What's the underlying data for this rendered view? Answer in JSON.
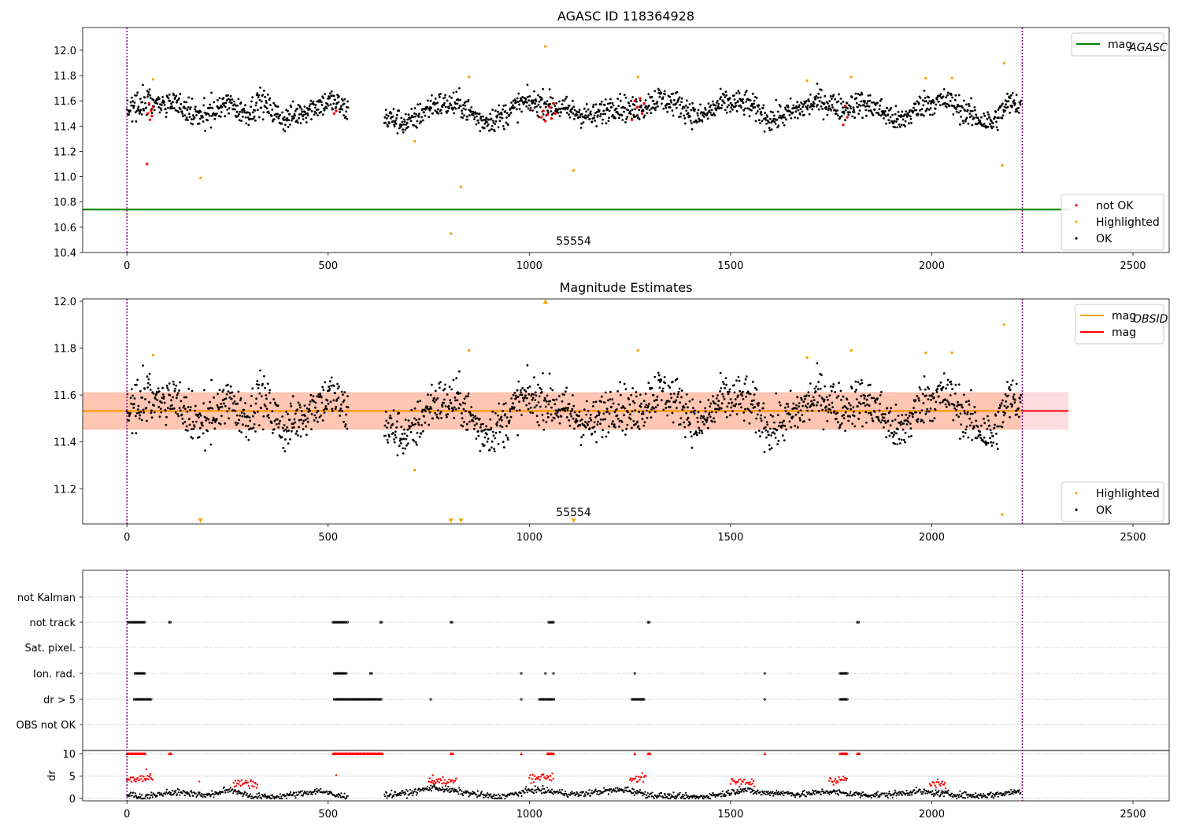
{
  "chart_data": [
    {
      "type": "scatter",
      "title": "AGASC ID 118364928",
      "xlim": [
        -110,
        2590
      ],
      "ylim": [
        10.4,
        12.18
      ],
      "xticks": [
        0,
        500,
        1000,
        1500,
        2000,
        2500
      ],
      "yticks": [
        10.4,
        10.6,
        10.8,
        11.0,
        11.2,
        11.4,
        11.6,
        11.8,
        12.0
      ],
      "ytick_labels": [
        "10.4",
        "10.6",
        "10.8",
        "11.0",
        "11.2",
        "11.4",
        "11.6",
        "11.8",
        "12.0"
      ],
      "annotation": "55554",
      "annotation_x": 1110,
      "vlines": [
        0,
        2225
      ],
      "legend_upper": [
        {
          "label": "mag",
          "sub": "AGASC",
          "color": "#008000",
          "kind": "line"
        }
      ],
      "legend_lower": [
        {
          "label": "not OK",
          "color": "#ff0000",
          "kind": "dot"
        },
        {
          "label": "Highlighted",
          "color": "#ffa500",
          "kind": "dot"
        },
        {
          "label": "OK",
          "color": "#000000",
          "kind": "dot"
        }
      ],
      "series": [
        {
          "name": "mag AGASC",
          "kind": "hline",
          "y": 10.74,
          "x": [
            -110,
            2340
          ],
          "color": "#008000"
        },
        {
          "name": "OK",
          "kind": "scatter",
          "color": "#000000",
          "segments": [
            [
              0,
              550
            ],
            [
              640,
              2222
            ]
          ],
          "y_knots": [
            [
              0,
              11.55
            ],
            [
              60,
              11.6
            ],
            [
              120,
              11.58
            ],
            [
              180,
              11.46
            ],
            [
              250,
              11.58
            ],
            [
              300,
              11.5
            ],
            [
              330,
              11.6
            ],
            [
              390,
              11.45
            ],
            [
              460,
              11.55
            ],
            [
              510,
              11.6
            ],
            [
              550,
              11.52
            ],
            [
              640,
              11.47
            ],
            [
              700,
              11.42
            ],
            [
              760,
              11.57
            ],
            [
              830,
              11.57
            ],
            [
              880,
              11.44
            ],
            [
              930,
              11.47
            ],
            [
              980,
              11.58
            ],
            [
              1040,
              11.58
            ],
            [
              1090,
              11.53
            ],
            [
              1160,
              11.47
            ],
            [
              1210,
              11.57
            ],
            [
              1260,
              11.52
            ],
            [
              1320,
              11.62
            ],
            [
              1380,
              11.56
            ],
            [
              1420,
              11.46
            ],
            [
              1480,
              11.58
            ],
            [
              1540,
              11.58
            ],
            [
              1600,
              11.45
            ],
            [
              1660,
              11.52
            ],
            [
              1720,
              11.6
            ],
            [
              1780,
              11.54
            ],
            [
              1820,
              11.58
            ],
            [
              1860,
              11.55
            ],
            [
              1920,
              11.43
            ],
            [
              1980,
              11.58
            ],
            [
              2040,
              11.6
            ],
            [
              2100,
              11.48
            ],
            [
              2150,
              11.42
            ],
            [
              2190,
              11.58
            ],
            [
              2222,
              11.58
            ]
          ]
        },
        {
          "name": "Highlighted",
          "kind": "scatter",
          "color": "#ffa500",
          "x": [
            65,
            183,
            715,
            805,
            830,
            850,
            1040,
            1110,
            1270,
            1690,
            1800,
            1985,
            2050,
            2175,
            2180
          ],
          "y": [
            11.77,
            10.99,
            11.28,
            10.55,
            10.92,
            11.79,
            12.03,
            11.05,
            11.79,
            11.76,
            11.79,
            11.78,
            11.78,
            11.09,
            11.9
          ]
        },
        {
          "name": "not OK",
          "kind": "scatter",
          "color": "#ff0000",
          "x": [
            50,
            52,
            55,
            57,
            60,
            62,
            65,
            515,
            520,
            1030,
            1035,
            1040,
            1045,
            1050,
            1055,
            1060,
            1065,
            1255,
            1262,
            1268,
            1275,
            1280,
            1285,
            1780,
            1785,
            1790
          ],
          "y": [
            11.1,
            11.5,
            11.58,
            11.45,
            11.52,
            11.48,
            11.55,
            11.5,
            11.52,
            11.47,
            11.52,
            11.44,
            11.49,
            11.55,
            11.46,
            11.58,
            11.5,
            11.45,
            11.6,
            11.55,
            11.62,
            11.5,
            11.58,
            11.41,
            11.56,
            11.47
          ]
        }
      ]
    },
    {
      "type": "scatter",
      "title": "Magnitude Estimates",
      "xlim": [
        -110,
        2590
      ],
      "ylim": [
        11.05,
        12.01
      ],
      "xticks": [
        0,
        500,
        1000,
        1500,
        2000,
        2500
      ],
      "yticks": [
        11.2,
        11.4,
        11.6,
        11.8,
        12.0
      ],
      "ytick_labels": [
        "11.2",
        "11.4",
        "11.6",
        "11.8",
        "12.0"
      ],
      "annotation": "55554",
      "annotation_x": 1110,
      "vlines": [
        0,
        2225
      ],
      "legend_upper": [
        {
          "label": "mag",
          "sub": "OBSID",
          "color": "#ffa500",
          "kind": "line"
        },
        {
          "label": "mag",
          "sub": "",
          "color": "#ff0000",
          "kind": "line"
        }
      ],
      "legend_lower": [
        {
          "label": "Highlighted",
          "color": "#ffa500",
          "kind": "dot"
        },
        {
          "label": "OK",
          "color": "#000000",
          "kind": "dot"
        }
      ],
      "series": [
        {
          "name": "mag band",
          "kind": "band",
          "y_lo": 11.452,
          "y_hi": 11.612,
          "x": [
            -110,
            2340
          ],
          "color": "#ffc0cb"
        },
        {
          "name": "mag OBSID band",
          "kind": "band",
          "y_lo": 11.452,
          "y_hi": 11.612,
          "x": [
            -110,
            2222
          ],
          "color": "#ffb48c"
        },
        {
          "name": "mag",
          "kind": "hline",
          "y": 11.532,
          "x": [
            -110,
            2340
          ],
          "color": "#ff0000"
        },
        {
          "name": "mag OBSID",
          "kind": "hline",
          "y": 11.532,
          "x": [
            -110,
            2222
          ],
          "color": "#ffa500"
        },
        {
          "name": "OK",
          "kind": "scatter",
          "color": "#000000",
          "segments": [
            [
              0,
              550
            ],
            [
              640,
              2222
            ]
          ],
          "y_knots": [
            [
              0,
              11.55
            ],
            [
              60,
              11.6
            ],
            [
              120,
              11.58
            ],
            [
              180,
              11.46
            ],
            [
              250,
              11.58
            ],
            [
              300,
              11.5
            ],
            [
              330,
              11.6
            ],
            [
              390,
              11.45
            ],
            [
              460,
              11.55
            ],
            [
              510,
              11.6
            ],
            [
              550,
              11.52
            ],
            [
              640,
              11.47
            ],
            [
              700,
              11.42
            ],
            [
              760,
              11.57
            ],
            [
              830,
              11.57
            ],
            [
              880,
              11.44
            ],
            [
              930,
              11.47
            ],
            [
              980,
              11.58
            ],
            [
              1040,
              11.58
            ],
            [
              1090,
              11.53
            ],
            [
              1160,
              11.47
            ],
            [
              1210,
              11.57
            ],
            [
              1260,
              11.52
            ],
            [
              1320,
              11.62
            ],
            [
              1380,
              11.56
            ],
            [
              1420,
              11.46
            ],
            [
              1480,
              11.58
            ],
            [
              1540,
              11.58
            ],
            [
              1600,
              11.45
            ],
            [
              1660,
              11.52
            ],
            [
              1720,
              11.6
            ],
            [
              1780,
              11.54
            ],
            [
              1820,
              11.58
            ],
            [
              1860,
              11.55
            ],
            [
              1920,
              11.43
            ],
            [
              1980,
              11.58
            ],
            [
              2040,
              11.6
            ],
            [
              2100,
              11.48
            ],
            [
              2150,
              11.42
            ],
            [
              2190,
              11.58
            ],
            [
              2222,
              11.58
            ]
          ]
        },
        {
          "name": "Highlighted",
          "kind": "scatter",
          "color": "#ffa500",
          "x": [
            65,
            715,
            850,
            1270,
            1690,
            1800,
            1985,
            2050,
            2175,
            2180
          ],
          "y": [
            11.77,
            11.28,
            11.79,
            11.79,
            11.76,
            11.79,
            11.78,
            11.78,
            11.09,
            11.9
          ]
        },
        {
          "name": "Highlighted (out of range)",
          "kind": "marker",
          "color": "#ffa500",
          "x": [
            183,
            805,
            830,
            1110,
            1040
          ],
          "dir": [
            "down",
            "down",
            "down",
            "down",
            "up"
          ]
        }
      ]
    },
    {
      "type": "scatter",
      "title": "",
      "xlim": [
        -110,
        2590
      ],
      "xticks": [
        0,
        500,
        1000,
        1500,
        2000,
        2500
      ],
      "vlines": [
        0,
        2225
      ],
      "flag_labels": [
        "not Kalman",
        "not track",
        "Sat. pixel.",
        "Ion. rad.",
        "dr > 5",
        "OBS not OK"
      ],
      "flags": {
        "not Kalman": [],
        "not track": [
          [
            2,
            45
          ],
          [
            105,
            110
          ],
          [
            512,
            548
          ],
          [
            630,
            635
          ],
          [
            805,
            808
          ],
          [
            1048,
            1060
          ],
          [
            1295,
            1300
          ],
          [
            1815,
            1820
          ]
        ],
        "Sat. pixel.": [],
        "Ion. rad.": [
          [
            20,
            45
          ],
          [
            515,
            545
          ],
          [
            605,
            608
          ],
          [
            980,
            982
          ],
          [
            1040,
            1042
          ],
          [
            1060,
            1062
          ],
          [
            1262,
            1264
          ],
          [
            1585,
            1587
          ],
          [
            1772,
            1790
          ]
        ],
        "dr > 5": [
          [
            18,
            60
          ],
          [
            515,
            545
          ],
          [
            548,
            632
          ],
          [
            755,
            757
          ],
          [
            980,
            982
          ],
          [
            1025,
            1062
          ],
          [
            1255,
            1285
          ],
          [
            1585,
            1587
          ],
          [
            1772,
            1790
          ]
        ],
        "OBS not OK": []
      },
      "dr_panel": {
        "ylabel": "dr",
        "yticks": [
          0,
          5,
          10
        ],
        "ylim": [
          -0.5,
          10.7
        ],
        "segments": [
          [
            0,
            550
          ],
          [
            640,
            2222
          ]
        ],
        "base_knots": [
          [
            0,
            1.0
          ],
          [
            40,
            0.2
          ],
          [
            100,
            1.4
          ],
          [
            150,
            1.3
          ],
          [
            200,
            0.7
          ],
          [
            260,
            2.0
          ],
          [
            310,
            0.5
          ],
          [
            360,
            0.3
          ],
          [
            420,
            0.9
          ],
          [
            480,
            1.8
          ],
          [
            520,
            0.6
          ],
          [
            640,
            0.8
          ],
          [
            700,
            1.2
          ],
          [
            760,
            2.5
          ],
          [
            820,
            1.6
          ],
          [
            880,
            0.8
          ],
          [
            920,
            0.3
          ],
          [
            970,
            1.1
          ],
          [
            1010,
            2.0
          ],
          [
            1060,
            1.5
          ],
          [
            1120,
            0.9
          ],
          [
            1180,
            1.6
          ],
          [
            1240,
            2.0
          ],
          [
            1300,
            0.8
          ],
          [
            1360,
            0.4
          ],
          [
            1420,
            0.3
          ],
          [
            1480,
            1.0
          ],
          [
            1530,
            2.0
          ],
          [
            1580,
            1.2
          ],
          [
            1620,
            1.3
          ],
          [
            1680,
            0.9
          ],
          [
            1740,
            1.6
          ],
          [
            1800,
            1.0
          ],
          [
            1850,
            0.8
          ],
          [
            1900,
            0.9
          ],
          [
            1960,
            1.6
          ],
          [
            2010,
            1.2
          ],
          [
            2060,
            0.9
          ],
          [
            2110,
            0.6
          ],
          [
            2160,
            0.9
          ],
          [
            2222,
            1.7
          ]
        ],
        "red_clusters": [
          [
            0,
            65,
            4.5
          ],
          [
            265,
            325,
            3.4
          ],
          [
            750,
            820,
            3.8
          ],
          [
            1000,
            1060,
            4.8
          ],
          [
            1250,
            1290,
            4.5
          ],
          [
            1500,
            1560,
            3.6
          ],
          [
            1745,
            1790,
            4.2
          ],
          [
            1995,
            2035,
            3.2
          ]
        ],
        "red_cap": [
          [
            0,
            45
          ],
          [
            105,
            112
          ],
          [
            512,
            635
          ],
          [
            805,
            810
          ],
          [
            980,
            982
          ],
          [
            1045,
            1062
          ],
          [
            1262,
            1264
          ],
          [
            1295,
            1300
          ],
          [
            1585,
            1587
          ],
          [
            1772,
            1790
          ],
          [
            1815,
            1820
          ]
        ],
        "red_extra": [
          [
            48,
            6.5
          ],
          [
            58,
            5.5
          ],
          [
            180,
            3.8
          ],
          [
            520,
            5.2
          ],
          [
            760,
            5.2
          ]
        ]
      }
    }
  ]
}
